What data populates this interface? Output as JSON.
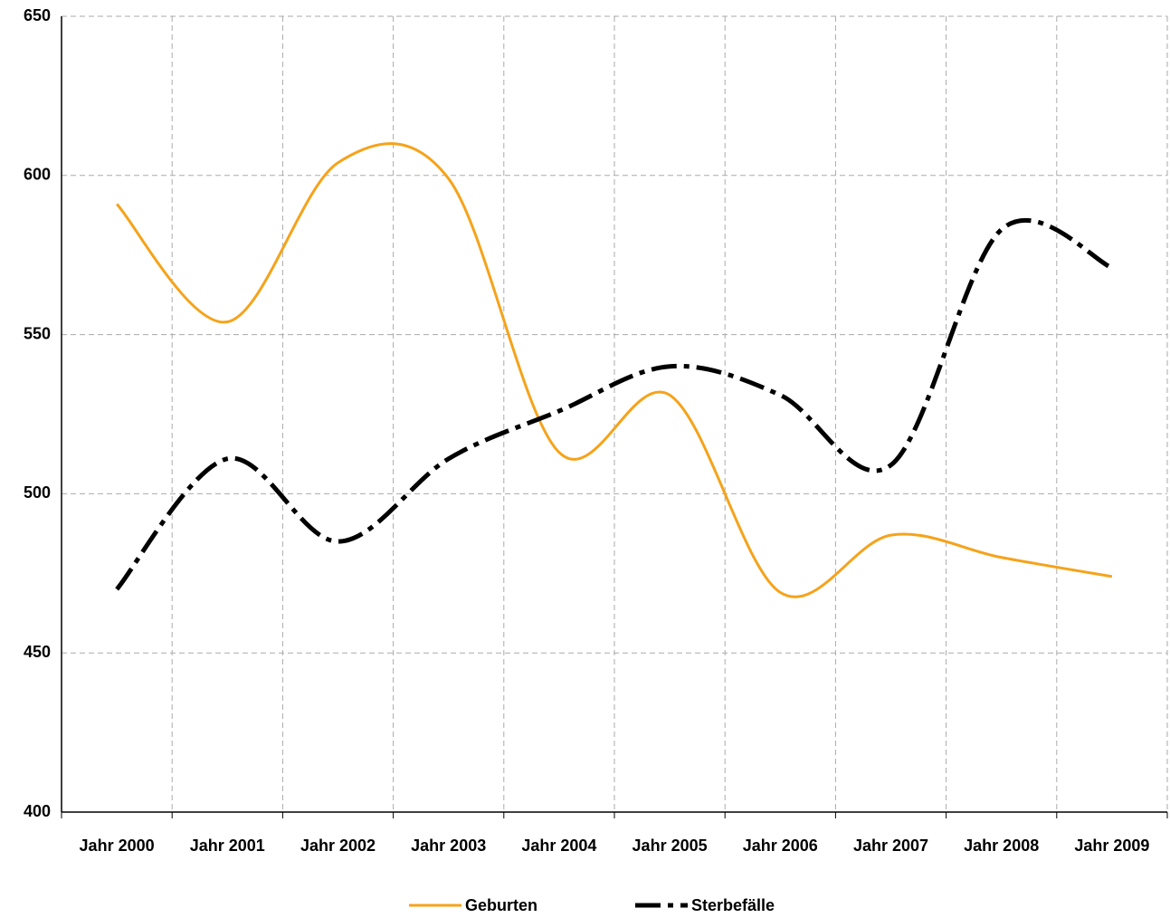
{
  "chart_data": {
    "type": "line",
    "categories": [
      "Jahr 2000",
      "Jahr 2001",
      "Jahr 2002",
      "Jahr 2003",
      "Jahr 2004",
      "Jahr 2005",
      "Jahr 2006",
      "Jahr 2007",
      "Jahr 2008",
      "Jahr 2009"
    ],
    "series": [
      {
        "name": "Geburten",
        "color": "#f5a31a",
        "values": [
          591,
          554,
          604,
          599,
          513,
          531,
          469,
          487,
          480,
          474
        ]
      },
      {
        "name": "Sterbefälle",
        "color": "#000000",
        "values": [
          470,
          511,
          485,
          511,
          526,
          540,
          531,
          509,
          583,
          571
        ]
      }
    ],
    "ylim": [
      400,
      650
    ],
    "yticks": [
      400,
      450,
      500,
      550,
      600,
      650
    ],
    "grid": true,
    "legend": "bottom"
  }
}
